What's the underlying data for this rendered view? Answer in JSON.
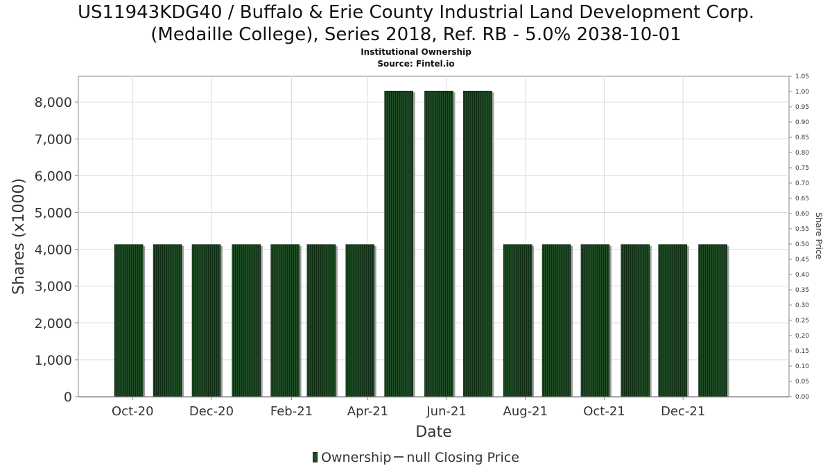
{
  "title_line1": "US11943KDG40 / Buffalo & Erie County Industrial Land Development Corp.",
  "title_line2": "(Medaille College), Series 2018, Ref. RB - 5.0% 2038-10-01",
  "subtitle": "Institutional Ownership",
  "source": "Source: Fintel.io",
  "legend": {
    "ownership_label": "Ownership",
    "price_label": "null Closing Price"
  },
  "colors": {
    "bar_fill": "#1e4a24",
    "bar_stripe": "#0e2a12",
    "bar_shadow": "#8a8a8a",
    "grid": "#dddddd",
    "axis": "#888888"
  },
  "chart_data": {
    "type": "bar",
    "xlabel": "Date",
    "ylabel": "Shares (x1000)",
    "y2label": "Share Price",
    "ylim": [
      0,
      8700
    ],
    "y2lim": [
      0,
      1.05
    ],
    "yticks": [
      0,
      1000,
      2000,
      3000,
      4000,
      5000,
      6000,
      7000,
      8000
    ],
    "ytick_labels": [
      "0",
      "1,000",
      "2,000",
      "3,000",
      "4,000",
      "5,000",
      "6,000",
      "7,000",
      "8,000"
    ],
    "y2ticks": [
      "0.00",
      "0.05",
      "0.10",
      "0.15",
      "0.20",
      "0.25",
      "0.30",
      "0.35",
      "0.40",
      "0.45",
      "0.50",
      "0.55",
      "0.60",
      "0.65",
      "0.70",
      "0.75",
      "0.80",
      "0.85",
      "0.90",
      "0.95",
      "1.00",
      "1.05"
    ],
    "xticks": [
      "Oct-20",
      "Dec-20",
      "Feb-21",
      "Apr-21",
      "Jun-21",
      "Aug-21",
      "Oct-21",
      "Dec-21"
    ],
    "xtick_dates": [
      "2020-10-01",
      "2020-12-01",
      "2021-02-01",
      "2021-04-01",
      "2021-06-01",
      "2021-08-01",
      "2021-10-01",
      "2021-12-01"
    ],
    "xrange": [
      "2020-08-20",
      "2022-02-21"
    ],
    "grid": true,
    "legend_position": "bottom",
    "series": [
      {
        "name": "Ownership",
        "dates": [
          "2020-09-28",
          "2020-10-28",
          "2020-11-27",
          "2020-12-28",
          "2021-01-27",
          "2021-02-24",
          "2021-03-26",
          "2021-04-25",
          "2021-05-26",
          "2021-06-25",
          "2021-07-26",
          "2021-08-25",
          "2021-09-24",
          "2021-10-25",
          "2021-11-23",
          "2021-12-24"
        ],
        "values": [
          4130,
          4130,
          4130,
          4130,
          4130,
          4130,
          4130,
          8300,
          8300,
          8300,
          4130,
          4130,
          4130,
          4130,
          4130,
          4130
        ]
      }
    ]
  }
}
